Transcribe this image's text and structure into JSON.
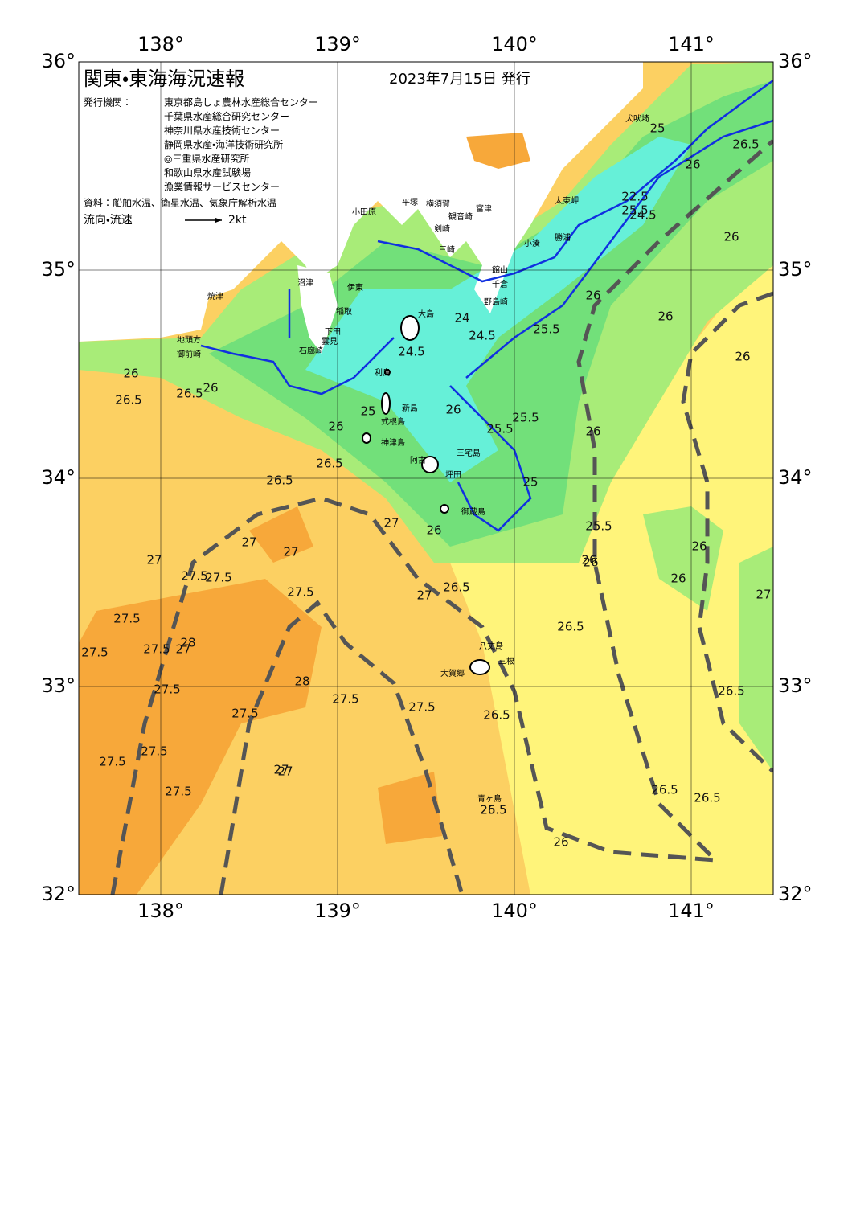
{
  "header": {
    "title": "関東・東海海況速報",
    "date": "2023年7月15日 発行",
    "issuer_label": "発行機関：",
    "issuers": [
      "東京都島しょ農林水産総合センター",
      "千葉県水産総合研究センター",
      "神奈川県水産技術センター",
      "静岡県水産・海洋技術研究所",
      "◎三重県水産研究所",
      "和歌山県水産試験場",
      "漁業情報サービスセンター"
    ],
    "source": "資料：船舶水温、衛星水温、気象庁解析水温",
    "flow_label": "流向・流速",
    "flow_scale": "2kt"
  },
  "map": {
    "xticks": [
      {
        "value": 138,
        "label": "138°"
      },
      {
        "value": 139,
        "label": "139°"
      },
      {
        "value": 140,
        "label": "140°"
      },
      {
        "value": 141,
        "label": "141°"
      }
    ],
    "yticks": [
      {
        "value": 36,
        "label": "36°"
      },
      {
        "value": 35,
        "label": "35°"
      },
      {
        "value": 34,
        "label": "34°"
      },
      {
        "value": 33,
        "label": "33°"
      },
      {
        "value": 32,
        "label": "32°"
      }
    ],
    "places": [
      "犬吠埼",
      "太東岬",
      "勝浦",
      "小湊",
      "館山",
      "千倉",
      "野島崎",
      "富津",
      "観音崎",
      "剣崎",
      "三崎",
      "横須賀",
      "平塚",
      "小田原",
      "伊東",
      "稲取",
      "下田",
      "石廊崎",
      "雲見",
      "沼津",
      "焼津",
      "御前崎",
      "地頭方",
      "大島",
      "利島",
      "新島",
      "式根島",
      "神津島",
      "三宅島",
      "阿古",
      "坪田",
      "御蔵島",
      "八丈島",
      "三根",
      "大賀郷",
      "青ヶ島"
    ],
    "contour_labels": [
      "25",
      "26.5",
      "26",
      "25.5",
      "22.5",
      "24.5",
      "26",
      "24",
      "24.5",
      "25.5",
      "26",
      "26",
      "26",
      "26.5",
      "26",
      "26.5",
      "26",
      "24.5",
      "25",
      "26",
      "25.5",
      "25.5",
      "26",
      "26",
      "26.5",
      "26.5",
      "27",
      "25",
      "26",
      "27",
      "25.5",
      "26",
      "27",
      "27.5",
      "27",
      "27",
      "26.5",
      "27.5",
      "27.5",
      "27.5",
      "28",
      "27",
      "27.5",
      "28",
      "27.5",
      "27.5",
      "27.5",
      "27.5",
      "27.5",
      "27.5",
      "27",
      "27.5",
      "27.5",
      "26.5",
      "26.5",
      "26.5",
      "26.5",
      "26.5",
      "26",
      "26",
      "26",
      "26",
      "27",
      "26.5",
      "25.5",
      "27"
    ]
  }
}
